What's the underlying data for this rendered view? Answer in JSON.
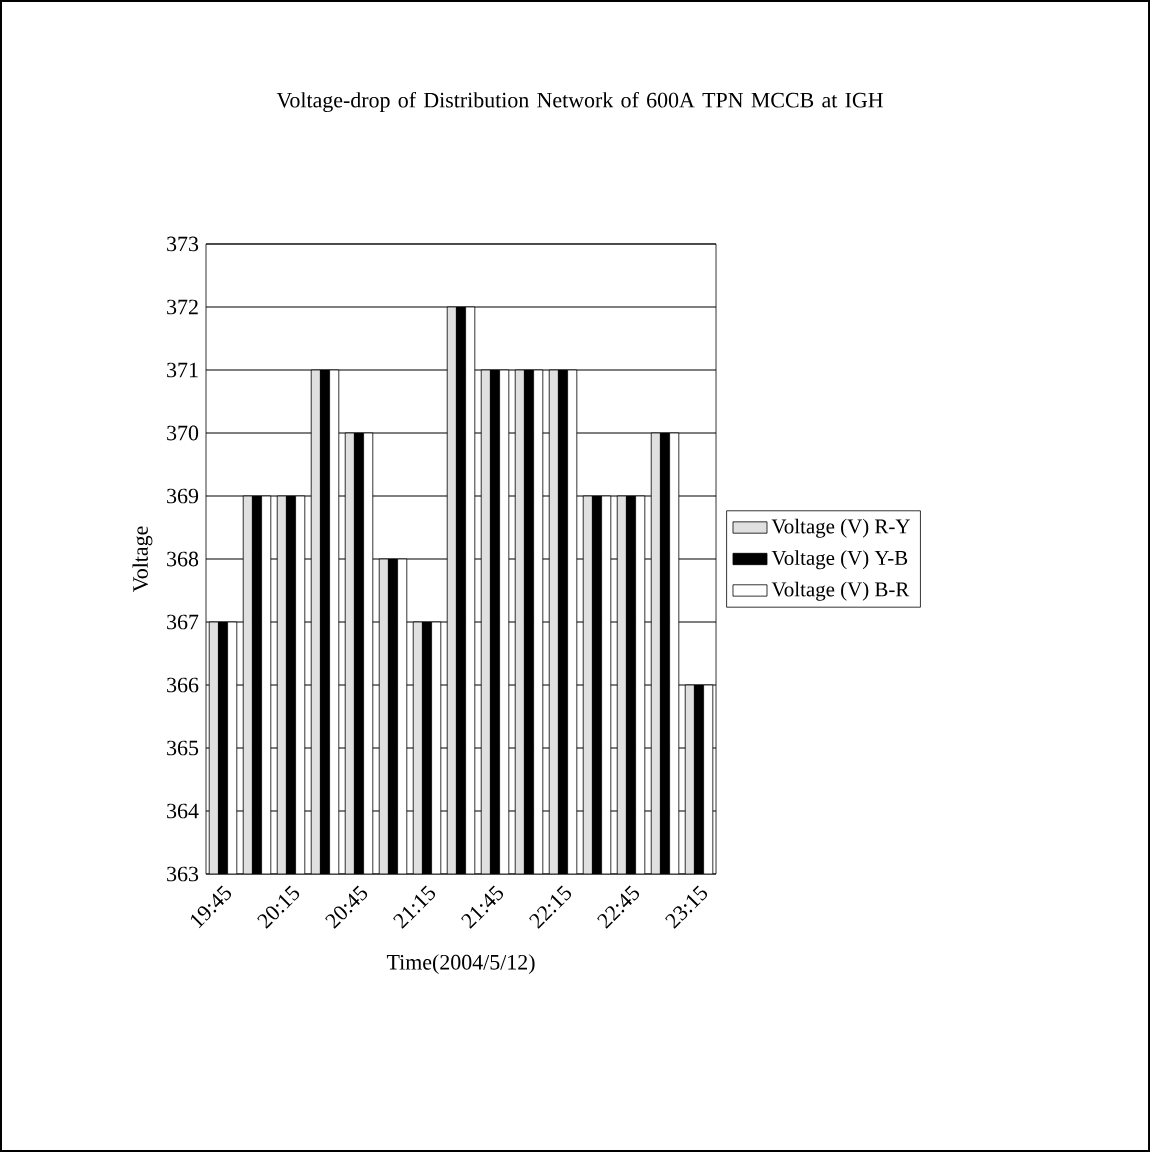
{
  "chart_data": {
    "type": "bar",
    "title": "Voltage-drop of Distribution Network of 600A TPN MCCB at IGH",
    "xlabel": "Time(2004/5/12)",
    "ylabel": "Voltage",
    "categories": [
      "19:45",
      null,
      "20:15",
      null,
      "20:45",
      null,
      "21:15",
      null,
      "21:45",
      null,
      "22:15",
      null,
      "22:45",
      null,
      "23:15"
    ],
    "series": [
      {
        "name": "Voltage (V) R-Y",
        "color": "#e0e0e0",
        "values": [
          367,
          369,
          369,
          371,
          370,
          368,
          367,
          372,
          371,
          371,
          371,
          369,
          369,
          370,
          366
        ]
      },
      {
        "name": "Voltage (V) Y-B",
        "color": "#000000",
        "values": [
          367,
          369,
          369,
          371,
          370,
          368,
          367,
          372,
          371,
          371,
          371,
          369,
          369,
          370,
          366
        ]
      },
      {
        "name": "Voltage (V) B-R",
        "color": "#ffffff",
        "values": [
          367,
          369,
          369,
          371,
          370,
          368,
          367,
          372,
          371,
          371,
          371,
          369,
          369,
          370,
          366
        ]
      }
    ],
    "ylim": [
      363,
      373
    ],
    "yticks": [
      363,
      364,
      365,
      366,
      367,
      368,
      369,
      370,
      371,
      372,
      373
    ],
    "grid": "y",
    "legend": "right"
  }
}
